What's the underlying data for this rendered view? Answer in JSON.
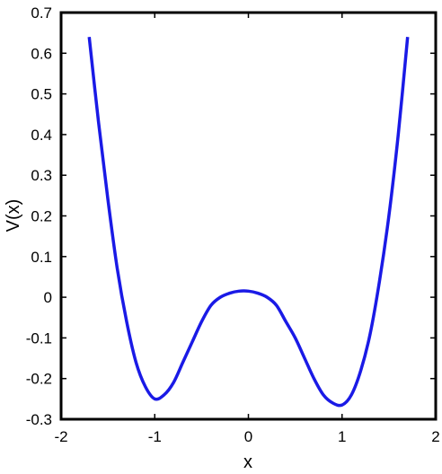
{
  "chart_data": {
    "type": "line",
    "title": "",
    "xlabel": "x",
    "ylabel": "V(x)",
    "xlim": [
      -2,
      2
    ],
    "ylim": [
      -0.3,
      0.7
    ],
    "xticks": [
      "-2",
      "-1",
      "0",
      "1",
      "2"
    ],
    "yticks": [
      "-0.3",
      "-0.2",
      "-0.1",
      "0",
      "0.1",
      "0.2",
      "0.3",
      "0.4",
      "0.5",
      "0.6",
      "0.7"
    ],
    "grid": false,
    "series": [
      {
        "color": "#1a1ae6",
        "x": [
          -1.7,
          -1.6,
          -1.5,
          -1.4,
          -1.3,
          -1.2,
          -1.1,
          -1.0,
          -0.9,
          -0.8,
          -0.7,
          -0.6,
          -0.5,
          -0.4,
          -0.3,
          -0.2,
          -0.1,
          0.0,
          0.1,
          0.2,
          0.3,
          0.4,
          0.5,
          0.6,
          0.7,
          0.8,
          0.9,
          1.0,
          1.1,
          1.2,
          1.3,
          1.4,
          1.5,
          1.6,
          1.7
        ],
        "y": [
          0.64,
          0.43,
          0.24,
          0.07,
          -0.06,
          -0.16,
          -0.22,
          -0.25,
          -0.24,
          -0.21,
          -0.16,
          -0.11,
          -0.06,
          -0.02,
          0.0,
          0.01,
          0.015,
          0.015,
          0.01,
          0.0,
          -0.02,
          -0.06,
          -0.1,
          -0.15,
          -0.2,
          -0.24,
          -0.26,
          -0.265,
          -0.24,
          -0.18,
          -0.09,
          0.04,
          0.2,
          0.4,
          0.64
        ]
      }
    ]
  }
}
